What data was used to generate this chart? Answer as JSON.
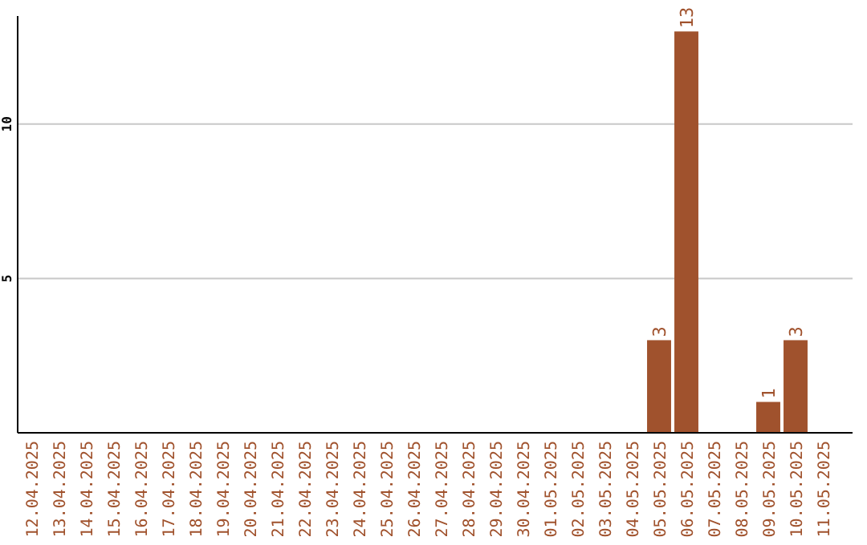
{
  "chart_data": {
    "type": "bar",
    "categories": [
      "12.04.2025",
      "13.04.2025",
      "14.04.2025",
      "15.04.2025",
      "16.04.2025",
      "17.04.2025",
      "18.04.2025",
      "19.04.2025",
      "20.04.2025",
      "21.04.2025",
      "22.04.2025",
      "23.04.2025",
      "24.04.2025",
      "25.04.2025",
      "26.04.2025",
      "27.04.2025",
      "28.04.2025",
      "29.04.2025",
      "30.04.2025",
      "01.05.2025",
      "02.05.2025",
      "03.05.2025",
      "04.05.2025",
      "05.05.2025",
      "06.05.2025",
      "07.05.2025",
      "08.05.2025",
      "09.05.2025",
      "10.05.2025",
      "11.05.2025"
    ],
    "values": [
      0,
      0,
      0,
      0,
      0,
      0,
      0,
      0,
      0,
      0,
      0,
      0,
      0,
      0,
      0,
      0,
      0,
      0,
      0,
      0,
      0,
      0,
      0,
      3,
      13,
      0,
      0,
      1,
      3,
      0
    ],
    "value_labels": [
      null,
      null,
      null,
      null,
      null,
      null,
      null,
      null,
      null,
      null,
      null,
      null,
      null,
      null,
      null,
      null,
      null,
      null,
      null,
      null,
      null,
      null,
      null,
      "3",
      "13",
      null,
      null,
      "1",
      "3",
      null
    ],
    "color": "#a0522d",
    "ylim": [
      0,
      13.5
    ],
    "yticks": [
      5,
      10
    ],
    "grid": "y"
  }
}
